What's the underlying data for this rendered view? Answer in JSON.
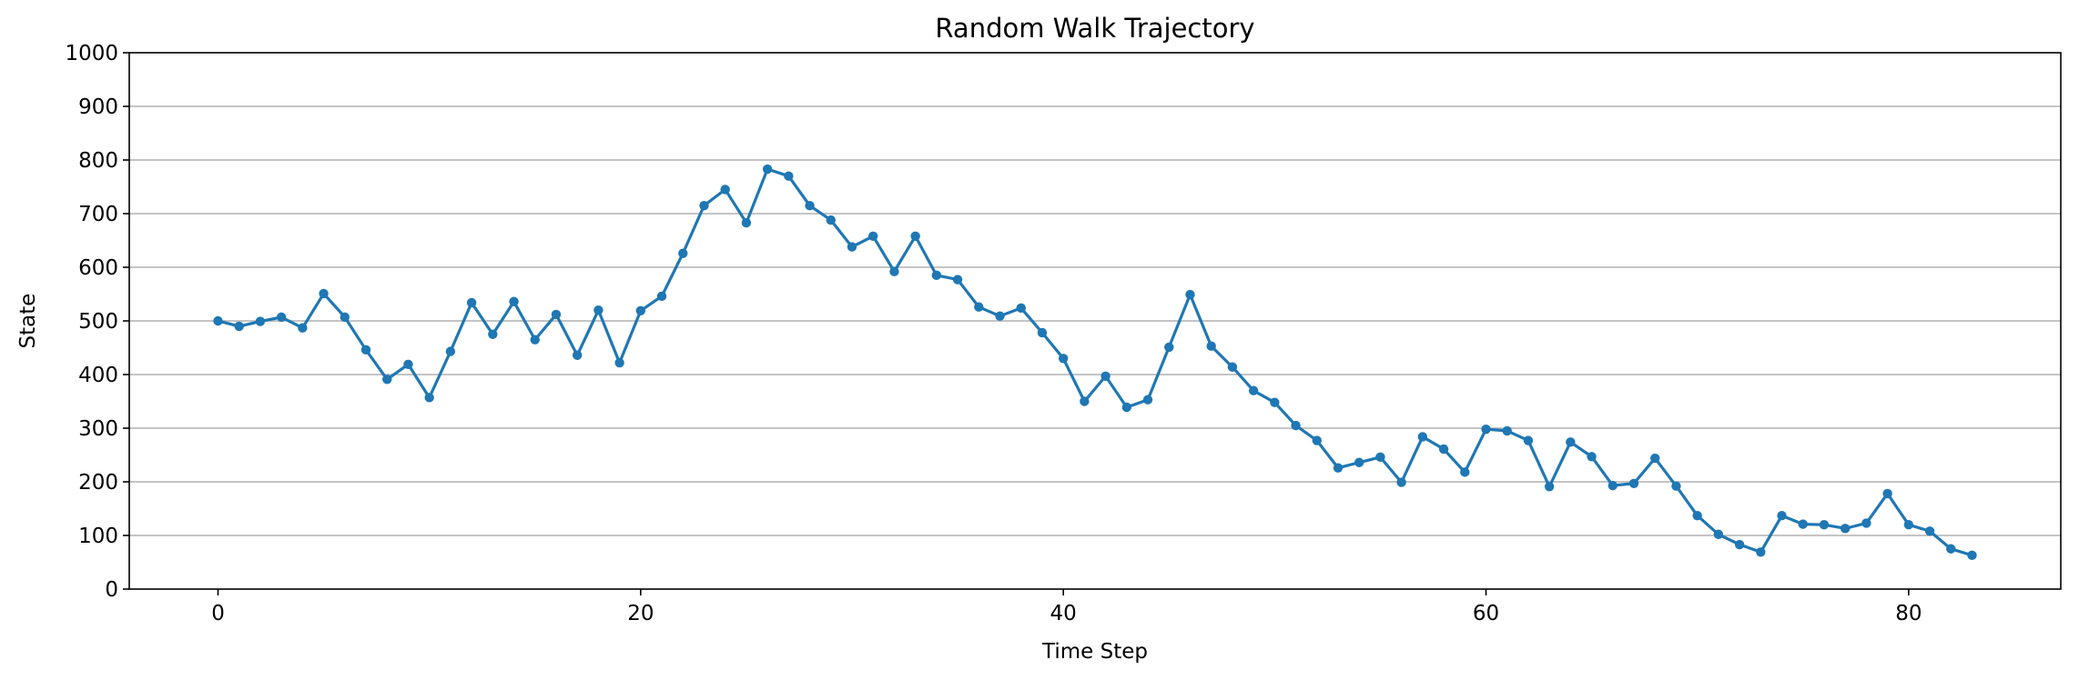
{
  "chart_data": {
    "type": "line",
    "title": "Random Walk Trajectory",
    "xlabel": "Time Step",
    "ylabel": "State",
    "xlim": [
      -4.2,
      87.2
    ],
    "ylim": [
      0,
      1000
    ],
    "xticks": [
      0,
      20,
      40,
      60,
      80
    ],
    "yticks": [
      0,
      100,
      200,
      300,
      400,
      500,
      600,
      700,
      800,
      900,
      1000
    ],
    "grid": "horizontal",
    "legend": "none",
    "series": [
      {
        "color": "#1f77b4",
        "marker": "circle",
        "x": [
          0,
          1,
          2,
          3,
          4,
          5,
          6,
          7,
          8,
          9,
          10,
          11,
          12,
          13,
          14,
          15,
          16,
          17,
          18,
          19,
          20,
          21,
          22,
          23,
          24,
          25,
          26,
          27,
          28,
          29,
          30,
          31,
          32,
          33,
          34,
          35,
          36,
          37,
          38,
          39,
          40,
          41,
          42,
          43,
          44,
          45,
          46,
          47,
          48,
          49,
          50,
          51,
          52,
          53,
          54,
          55,
          56,
          57,
          58,
          59,
          60,
          61,
          62,
          63,
          64,
          65,
          66,
          67,
          68,
          69,
          70,
          71,
          72,
          73,
          74,
          75,
          76,
          77,
          78,
          79,
          80,
          81,
          82,
          83
        ],
        "values": [
          500,
          490,
          499,
          507,
          487,
          551,
          507,
          446,
          391,
          419,
          357,
          443,
          534,
          475,
          536,
          465,
          512,
          436,
          520,
          422,
          519,
          546,
          626,
          715,
          745,
          683,
          783,
          770,
          715,
          688,
          638,
          658,
          592,
          658,
          585,
          577,
          526,
          509,
          524,
          478,
          430,
          350,
          397,
          339,
          353,
          451,
          549,
          453,
          414,
          370,
          348,
          305,
          277,
          226,
          236,
          246,
          199,
          284,
          261,
          218,
          298,
          295,
          277,
          191,
          274,
          247,
          193,
          197,
          244,
          192,
          137,
          102,
          83,
          69,
          137,
          121,
          120,
          113,
          123,
          178,
          120,
          108,
          75,
          63
        ]
      }
    ]
  }
}
